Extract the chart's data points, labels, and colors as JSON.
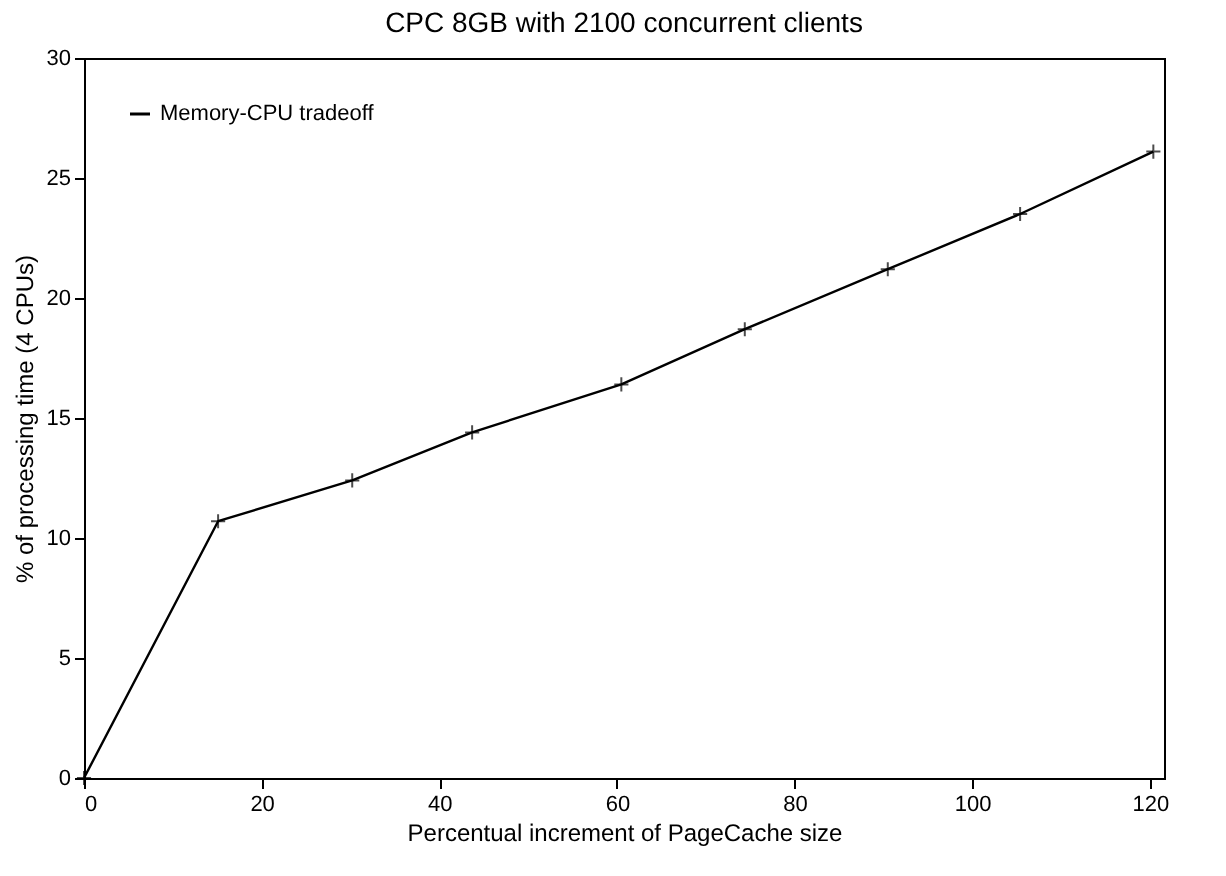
{
  "chart_data": {
    "type": "line",
    "title": "CPC 8GB with 2100 concurrent clients",
    "xlabel": "Percentual increment of PageCache size",
    "ylabel": "% of processing time (4 CPUs)",
    "x": [
      0,
      15.1,
      30.2,
      43.7,
      60.5,
      74.4,
      90.5,
      105.4,
      120.4
    ],
    "series": [
      {
        "name": "Memory-CPU tradeoff",
        "color": "#000000",
        "values": [
          0,
          10.7,
          12.4,
          14.4,
          16.4,
          18.7,
          21.2,
          23.5,
          26.1
        ]
      }
    ],
    "xlim": [
      0,
      121.6
    ],
    "ylim": [
      0,
      30
    ],
    "xticks": [
      0,
      20,
      40,
      60,
      80,
      100,
      120
    ],
    "yticks": [
      0,
      5,
      10,
      15,
      20,
      25,
      30
    ],
    "grid": false,
    "legend": "top left",
    "marker": "cross",
    "line_style": "solid"
  }
}
